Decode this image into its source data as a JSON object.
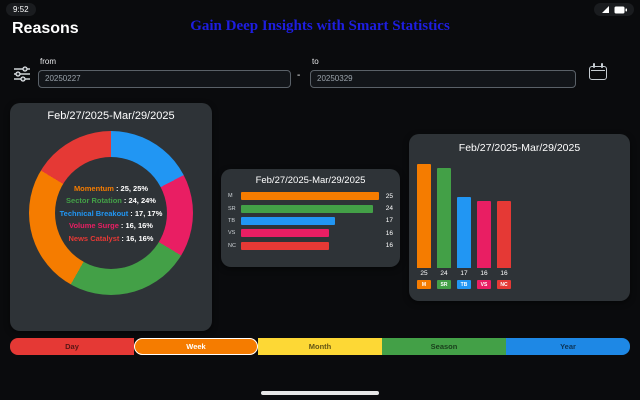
{
  "status_bar": {
    "time": "9:52",
    "icons": [
      "signal-icon",
      "battery-icon"
    ]
  },
  "header": {
    "app_title": "Reasons",
    "page_title": "Gain Deep Insights with Smart Statistics"
  },
  "filters": {
    "from_label": "from",
    "from_value": "20250227",
    "range_separator": "-",
    "to_label": "to",
    "to_value": "20250329",
    "icons": [
      "sliders-icon",
      "calendar-icon"
    ]
  },
  "period": "Feb/27/2025-Mar/29/2025",
  "categories": [
    {
      "label": "Momentum",
      "short": "M",
      "value": 25,
      "percent": "25%",
      "legend_text": ": 25, 25%",
      "color": "#F57C00"
    },
    {
      "label": "Sector Rotation",
      "short": "SR",
      "value": 24,
      "percent": "24%",
      "legend_text": ": 24, 24%",
      "color": "#43A047"
    },
    {
      "label": "Technical Breakout",
      "short": "TB",
      "value": 17,
      "percent": "17%",
      "legend_text": ": 17, 17%",
      "color": "#2196F3"
    },
    {
      "label": "Volume Surge",
      "short": "VS",
      "value": 16,
      "percent": "16%",
      "legend_text": ": 16, 16%",
      "color": "#E91E63"
    },
    {
      "label": "News Catalyst",
      "short": "NC",
      "value": 16,
      "percent": "16%",
      "legend_text": ": 16, 16%",
      "color": "#E53935"
    }
  ],
  "chart_data": [
    {
      "type": "pie",
      "subtype": "donut",
      "title": "Feb/27/2025-Mar/29/2025",
      "labels": [
        "Momentum",
        "Sector Rotation",
        "Technical Breakout",
        "Volume Surge",
        "News Catalyst"
      ],
      "values": [
        25,
        24,
        17,
        16,
        16
      ],
      "percents": [
        "25%",
        "24%",
        "17%",
        "16%",
        "16%"
      ],
      "colors": [
        "#F57C00",
        "#43A047",
        "#2196F3",
        "#E91E63",
        "#E53935"
      ],
      "legend_position": "center",
      "segments_clockwise_from_top": [
        {
          "label": "Technical Breakout",
          "value": 17,
          "color": "#2196F3"
        },
        {
          "label": "Volume Surge",
          "value": 16,
          "color": "#E91E63"
        },
        {
          "label": "Sector Rotation",
          "value": 24,
          "color": "#43A047"
        },
        {
          "label": "Momentum",
          "value": 25,
          "color": "#F57C00"
        },
        {
          "label": "News Catalyst",
          "value": 16,
          "color": "#E53935"
        }
      ]
    },
    {
      "type": "bar",
      "orientation": "horizontal",
      "title": "Feb/27/2025-Mar/29/2025",
      "categories": [
        "M",
        "SR",
        "TB",
        "VS",
        "NC"
      ],
      "values": [
        25,
        24,
        17,
        16,
        16
      ],
      "colors": [
        "#F57C00",
        "#43A047",
        "#2196F3",
        "#E91E63",
        "#E53935"
      ],
      "xlim": [
        0,
        25
      ],
      "grid": false
    },
    {
      "type": "bar",
      "orientation": "vertical",
      "title": "Feb/27/2025-Mar/29/2025",
      "categories": [
        "M",
        "SR",
        "TB",
        "VS",
        "NC"
      ],
      "values": [
        25,
        24,
        17,
        16,
        16
      ],
      "colors": [
        "#F57C00",
        "#43A047",
        "#2196F3",
        "#E91E63",
        "#E53935"
      ],
      "ylim": [
        0,
        25
      ],
      "grid": false
    }
  ],
  "tabs": [
    {
      "label": "Day",
      "color": "#E53935",
      "selected": false
    },
    {
      "label": "Week",
      "color": "#F57C00",
      "selected": true
    },
    {
      "label": "Month",
      "color": "#FDD835",
      "selected": false
    },
    {
      "label": "Season",
      "color": "#43A047",
      "selected": false
    },
    {
      "label": "Year",
      "color": "#1E88E5",
      "selected": false
    }
  ]
}
